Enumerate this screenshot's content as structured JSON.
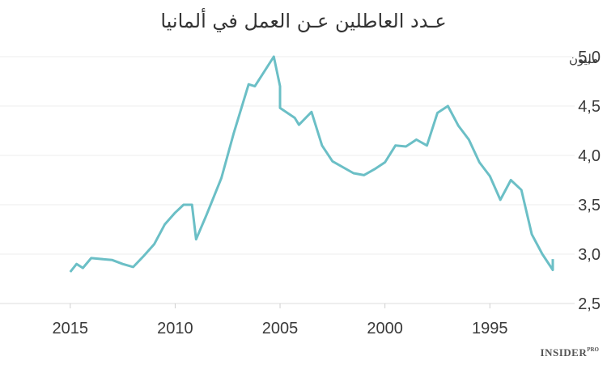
{
  "chart_data": {
    "type": "line",
    "title": "عـدد العاطلين عـن العمل في ألمانيا",
    "unit": "مليون",
    "x_axis": {
      "reversed": true,
      "range": [
        2017.5,
        1991.5
      ],
      "ticks": [
        "2015",
        "2010",
        "2005",
        "2000",
        "1995"
      ],
      "tick_values": [
        2015,
        2010,
        2005,
        2000,
        1995
      ]
    },
    "y_axis": {
      "range": [
        2.5,
        5.0
      ],
      "ticks": [
        "5,0",
        "4,5",
        "4,0",
        "3,5",
        "3,0",
        "2,5"
      ],
      "tick_values": [
        5.0,
        4.5,
        4.0,
        3.5,
        3.0,
        2.5
      ]
    },
    "grid": true,
    "color": "#6bbfc6",
    "x": [
      2015.0,
      2014.7,
      2014.4,
      2014.0,
      2013.0,
      2012.5,
      2012.0,
      2011.5,
      2011.0,
      2010.5,
      2010.0,
      2009.6,
      2009.2,
      2009.0,
      2008.5,
      2007.8,
      2007.2,
      2006.5,
      2006.2,
      2005.3,
      2005.0,
      2005.0,
      2004.3,
      2004.1,
      2003.5,
      2003.0,
      2002.5,
      2001.5,
      2001.0,
      2000.5,
      2000.0,
      1999.5,
      1999.0,
      1998.5,
      1998.0,
      1997.5,
      1997.0,
      1996.5,
      1996.0,
      1995.5,
      1995.0,
      1994.5,
      1994.0,
      1993.5,
      1993.0,
      1992.5,
      1992.0,
      1992.0
    ],
    "y": [
      2.82,
      2.9,
      2.86,
      2.96,
      2.94,
      2.9,
      2.87,
      2.98,
      3.1,
      3.3,
      3.42,
      3.5,
      3.5,
      3.15,
      3.4,
      3.77,
      4.23,
      4.72,
      4.7,
      5.0,
      4.7,
      4.48,
      4.38,
      4.31,
      4.44,
      4.1,
      3.94,
      3.82,
      3.8,
      3.86,
      3.93,
      4.1,
      4.09,
      4.16,
      4.1,
      4.43,
      4.5,
      4.3,
      4.16,
      3.93,
      3.79,
      3.55,
      3.75,
      3.65,
      3.2,
      3.0,
      2.84,
      2.95
    ]
  },
  "brand": {
    "name": "INSIDER",
    "suffix": "PRO"
  }
}
